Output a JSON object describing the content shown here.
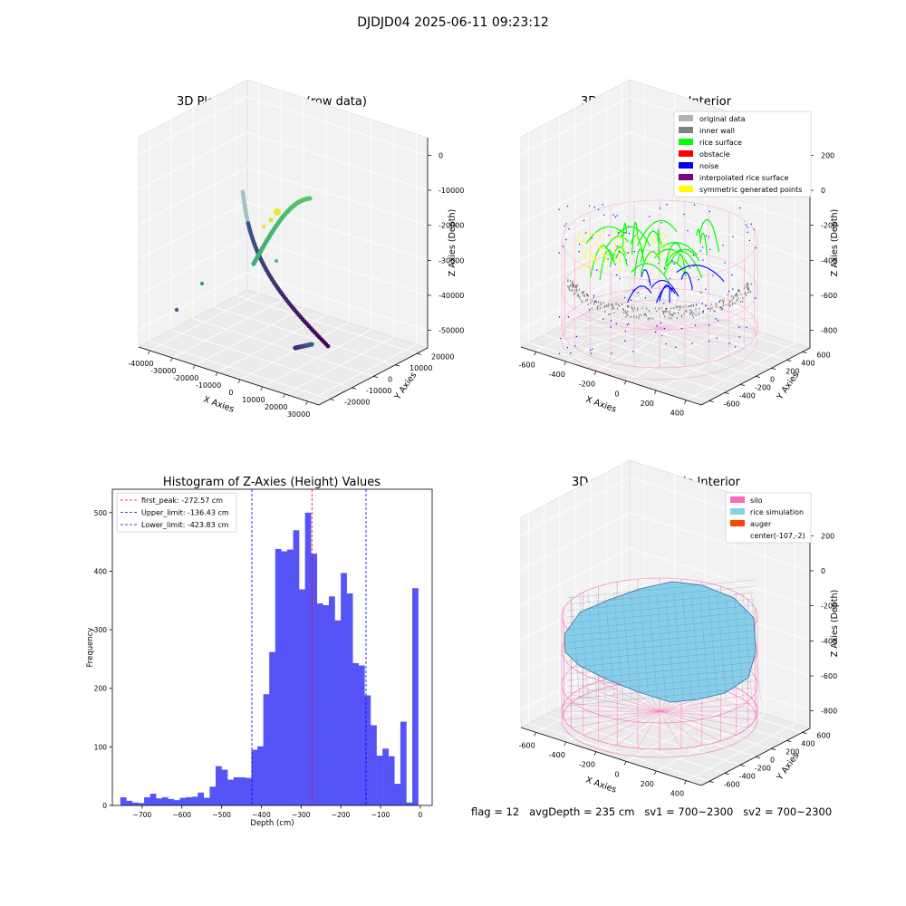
{
  "suptitle": "DJDJD04 2025-06-11 09:23:12",
  "footer": {
    "text": "flag = 12   avgDepth = 235 cm   sv1 = 700~2300   sv2 = 700~2300"
  },
  "chart_data": [
    {
      "type": "scatter3d",
      "title": "3D Plot of Silo Interior(row data)",
      "xlabel": "X Axies",
      "ylabel": "Y Axies",
      "zlabel": "Z Axies (Depth)",
      "xticks": [
        "-40000",
        "-30000",
        "-20000",
        "-10000",
        "0",
        "10000",
        "20000",
        "30000"
      ],
      "yticks": [
        "-20000",
        "-10000",
        "0",
        "10000",
        "20000"
      ],
      "zticks": [
        "-50000",
        "-40000",
        "-30000",
        "-20000",
        "-10000",
        "0"
      ],
      "colormap": "viridis"
    },
    {
      "type": "scatter3d",
      "title": "3D classify of Silo Interior",
      "xlabel": "X Axies",
      "ylabel": "Y Axies",
      "zlabel": "Z Axies (Depth)",
      "xticks": [
        "-600",
        "-400",
        "-200",
        "0",
        "200",
        "400"
      ],
      "yticks": [
        "-600",
        "-400",
        "-200",
        "0",
        "200",
        "400",
        "600"
      ],
      "zticks": [
        "-800",
        "-600",
        "-400",
        "-200",
        "0",
        "200"
      ],
      "legend_position": "top-right",
      "legend": [
        {
          "label": "original data",
          "color": "#b3b3b3"
        },
        {
          "label": "inner wall",
          "color": "#808080"
        },
        {
          "label": "rice surface",
          "color": "#00ff00"
        },
        {
          "label": "obstacle",
          "color": "#ff0000"
        },
        {
          "label": "noise",
          "color": "#0000ff"
        },
        {
          "label": "interpolated rice surface",
          "color": "#800080"
        },
        {
          "label": "symmetric generated points",
          "color": "#ffff00"
        }
      ]
    },
    {
      "type": "bar",
      "title": "Histogram of Z-Axies (Height) Values",
      "xlabel": "Depth (cm)",
      "ylabel": "Frequency",
      "xlim": [
        -775,
        30
      ],
      "ylim": [
        0,
        540
      ],
      "xticks": [
        -700,
        -600,
        -500,
        -400,
        -300,
        -200,
        -100,
        0
      ],
      "yticks": [
        0,
        100,
        200,
        300,
        400,
        500
      ],
      "bar_color": "#4b4bf7",
      "bin_start": -755,
      "bin_width": 15,
      "values": [
        14,
        8,
        5,
        4,
        14,
        20,
        12,
        14,
        11,
        9,
        13,
        14,
        15,
        22,
        13,
        32,
        67,
        61,
        44,
        48,
        48,
        47,
        95,
        101,
        190,
        262,
        438,
        434,
        437,
        470,
        369,
        500,
        430,
        345,
        342,
        357,
        316,
        397,
        362,
        243,
        239,
        188,
        137,
        85,
        97,
        84,
        37,
        143,
        5,
        371
      ],
      "vlines": [
        {
          "x": -272.57,
          "label": "first_peak: -272.57 cm",
          "color": "#ff0000"
        },
        {
          "x": -136.43,
          "label": "Upper_limit: -136.43 cm",
          "color": "#0000ff"
        },
        {
          "x": -423.83,
          "label": "Lower_limit: -423.83 cm",
          "color": "#0000ff"
        }
      ],
      "legend_position": "top-left"
    },
    {
      "type": "surface3d",
      "title": "3D simulation of Silo Interior",
      "xlabel": "X Axies",
      "ylabel": "Y Axies",
      "zlabel": "Z Axies (Depth)",
      "xticks": [
        "-600",
        "-400",
        "-200",
        "0",
        "200",
        "400"
      ],
      "yticks": [
        "-600",
        "-400",
        "-200",
        "0",
        "200",
        "400",
        "600"
      ],
      "zticks": [
        "-800",
        "-600",
        "-400",
        "-200",
        "0",
        "200"
      ],
      "legend_position": "top-right",
      "legend": [
        {
          "label": "silo",
          "color": "#ff69b4"
        },
        {
          "label": "rice simulation",
          "color": "#87ceeb"
        },
        {
          "label": "auger",
          "color": "#ff4500"
        },
        {
          "label": "center(-107,-2)",
          "color": "#ffffff"
        }
      ]
    }
  ]
}
